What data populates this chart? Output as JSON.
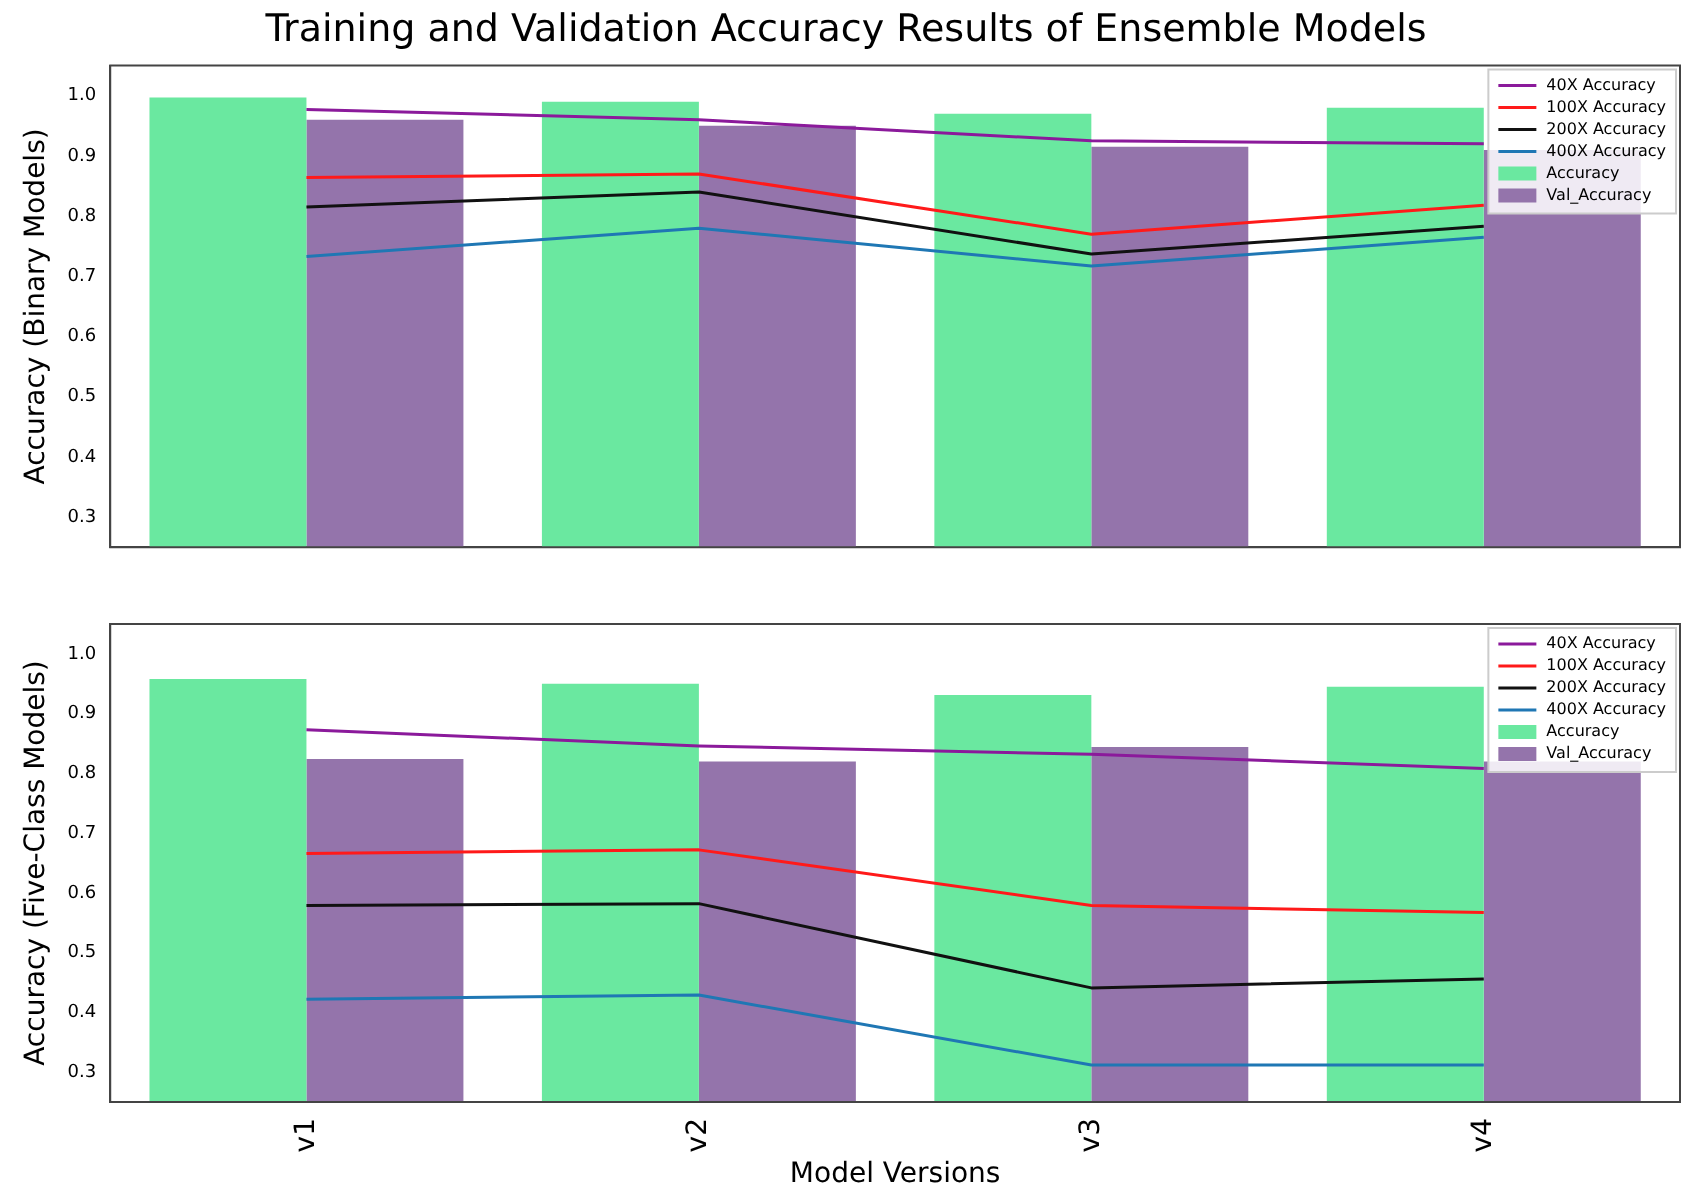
{
  "chart_data": [
    {
      "type": "bar",
      "title": "Training and Validation Accuracy Results of Ensemble Models",
      "ylabel": "Accuracy (Binary Models)",
      "categories": [
        null,
        null,
        null,
        null
      ],
      "tick_labels": "y",
      "legend": "top right",
      "grid": false,
      "marker": "none",
      "ylim": [
        0.25,
        1.05
      ],
      "yticks": [
        0.3,
        0.4,
        0.5,
        0.6,
        0.7,
        0.8,
        0.9,
        {
          "value": 1,
          "label": "1.0"
        }
      ],
      "series": [
        {
          "name": "40X Accuracy",
          "type": "line",
          "color": "#8b1a9b",
          "values": [
            0.977,
            0.96,
            0.925,
            0.92
          ]
        },
        {
          "name": "100X Accuracy",
          "type": "line",
          "color": "#ff1a1a",
          "values": [
            0.864,
            0.87,
            0.77,
            0.818
          ]
        },
        {
          "name": "200X Accuracy",
          "type": "line",
          "color": "#111111",
          "values": [
            0.815,
            0.84,
            0.737,
            0.783
          ]
        },
        {
          "name": "400X Accuracy",
          "type": "line",
          "color": "#1f77b4",
          "values": [
            0.733,
            0.78,
            0.717,
            0.765
          ]
        },
        {
          "name": "Accuracy",
          "color": "#6ae8a0",
          "values": [
            0.997,
            0.99,
            0.97,
            0.98
          ]
        },
        {
          "name": "Val_Accuracy",
          "color": "#9474ab",
          "values": [
            0.96,
            0.95,
            0.915,
            0.91
          ]
        }
      ]
    },
    {
      "type": "bar",
      "ylabel": "Accuracy (Five-Class Models)",
      "xlabel": "Model Versions",
      "categories": [
        "v1",
        "v2",
        "v3",
        "v4"
      ],
      "legend": "top right",
      "grid": false,
      "marker": "none",
      "ylim": [
        0.25,
        1.05
      ],
      "yticks": [
        0.3,
        0.4,
        0.5,
        0.6,
        0.7,
        0.8,
        0.9,
        {
          "value": 1,
          "label": "1.0"
        }
      ],
      "series": [
        {
          "name": "40X Accuracy",
          "type": "line",
          "color": "#8b1a9b",
          "values": [
            0.873,
            0.846,
            0.832,
            0.808
          ]
        },
        {
          "name": "100X Accuracy",
          "type": "line",
          "color": "#ff1a1a",
          "values": [
            0.666,
            0.672,
            0.579,
            0.567
          ]
        },
        {
          "name": "200X Accuracy",
          "type": "line",
          "color": "#111111",
          "values": [
            0.579,
            0.582,
            0.441,
            0.456
          ]
        },
        {
          "name": "400X Accuracy",
          "type": "line",
          "color": "#1f77b4",
          "values": [
            0.422,
            0.429,
            0.312,
            0.312
          ]
        },
        {
          "name": "Accuracy",
          "color": "#6ae8a0",
          "values": [
            0.958,
            0.95,
            0.931,
            0.945
          ]
        },
        {
          "name": "Val_Accuracy",
          "color": "#9474ab",
          "values": [
            0.824,
            0.82,
            0.844,
            0.82
          ]
        }
      ]
    }
  ]
}
